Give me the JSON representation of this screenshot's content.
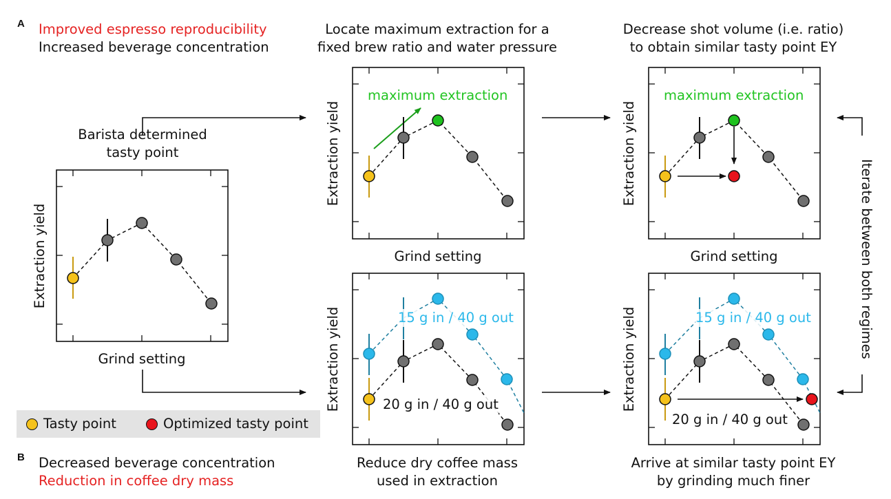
{
  "panel_labels": {
    "a": "A",
    "b": "B"
  },
  "section_a": {
    "line1": "Improved espresso reproducibility",
    "line2": "Increased beverage concentration"
  },
  "section_b": {
    "line1": "Decreased beverage concentration",
    "line2": "Reduction in coffee dry mass"
  },
  "step_titles": {
    "locate_line1": "Locate maximum extraction for a",
    "locate_line2": "fixed brew ratio and water pressure",
    "decrease_line1": "Decrease shot volume (i.e. ratio)",
    "decrease_line2": "to obtain similar tasty point EY",
    "barista_line1": "Barista determined",
    "barista_line2": "tasty point",
    "reduce_line1": "Reduce dry coffee mass",
    "reduce_line2": "used in extraction",
    "arrive_line1": "Arrive at similar tasty point EY",
    "arrive_line2": "by grinding much finer"
  },
  "axis": {
    "ylabel": "Extraction yield",
    "xlabel": "Grind setting"
  },
  "annotations": {
    "max_extraction": "maximum extraction",
    "ratio_15": "15 g in / 40 g out",
    "ratio_20": "20 g in / 40 g out"
  },
  "iterate": "Iterate between both regimes",
  "legend": {
    "tasty": "Tasty point",
    "optimized": "Optimized tasty point"
  },
  "colors": {
    "tasty": "#f5c21b",
    "optimized": "#e8141c",
    "max": "#1fc21f",
    "grey": "#707070",
    "cyan": "#2bb8ea",
    "red_text": "#e52222",
    "green_text": "#22c422"
  }
}
